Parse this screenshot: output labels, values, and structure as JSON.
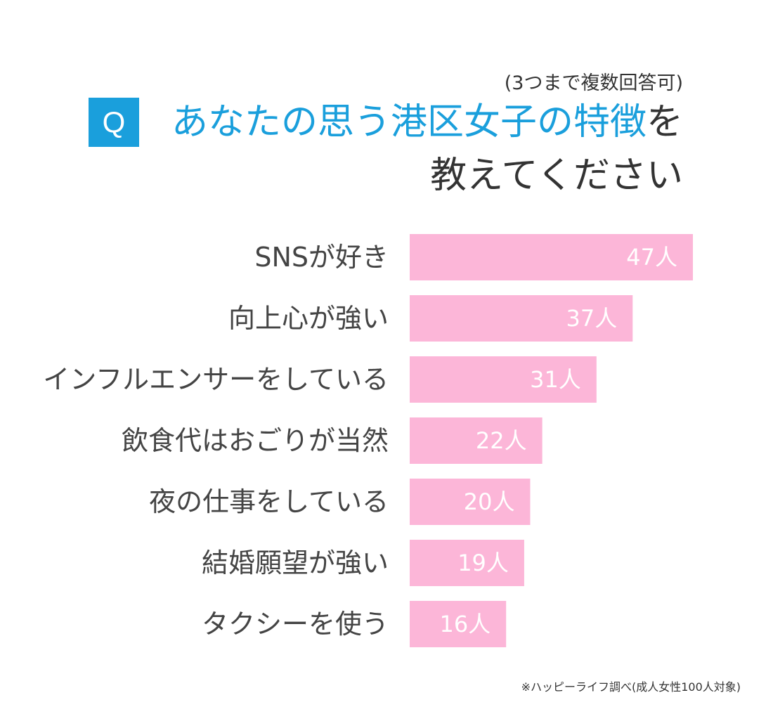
{
  "header": {
    "note": "(3つまで複数回答可)",
    "q_label": "Q",
    "title_highlight": "あなたの思う港区女子の特徴",
    "title_rest": "を",
    "title_line2": "教えてください"
  },
  "chart_data": {
    "type": "bar",
    "orientation": "horizontal",
    "categories": [
      "SNSが好き",
      "向上心が強い",
      "インフルエンサーをしている",
      "飲食代はおごりが当然",
      "夜の仕事をしている",
      "結婚願望が強い",
      "タクシーを使う"
    ],
    "values": [
      47,
      37,
      31,
      22,
      20,
      19,
      16
    ],
    "value_labels": [
      "47人",
      "37人",
      "31人",
      "22人",
      "20人",
      "19人",
      "16人"
    ],
    "grid": false,
    "colors": {
      "bar": "#fcb6d8",
      "value_text": "#ffffff",
      "category_text": "#444444"
    }
  },
  "footnote": "※ハッピーライフ調べ(成人女性100人対象)"
}
